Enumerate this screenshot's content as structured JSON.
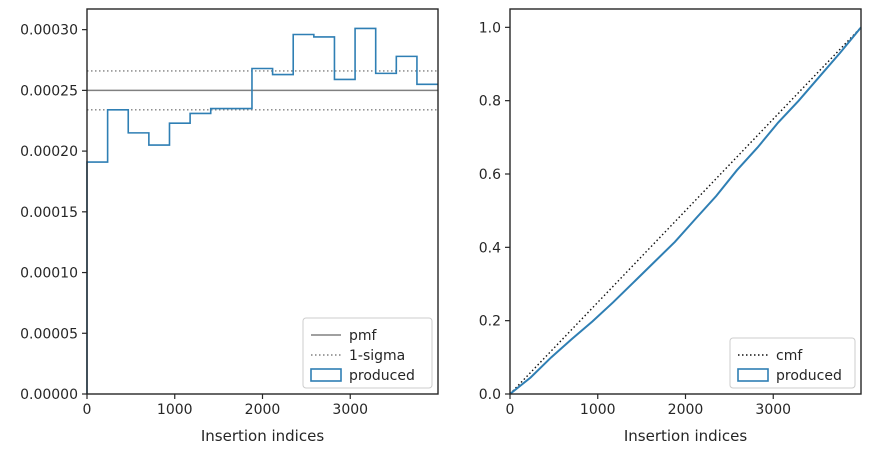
{
  "chart_data": [
    {
      "type": "line",
      "subtype": "step-histogram",
      "xlabel": "Insertion indices",
      "ylabel": "",
      "xlim": [
        0,
        4000
      ],
      "ylim": [
        0,
        0.000317
      ],
      "xticks": [
        0,
        1000,
        2000,
        3000
      ],
      "xtick_labels": [
        "0",
        "1000",
        "2000",
        "3000"
      ],
      "yticks": [
        0,
        5e-05,
        0.0001,
        0.00015,
        0.0002,
        0.00025,
        0.0003
      ],
      "ytick_labels": [
        "0.00000",
        "0.00005",
        "0.00010",
        "0.00015",
        "0.00020",
        "0.00025",
        "0.00030"
      ],
      "grid": false,
      "legend_position": "bottom-right",
      "legend": [
        "pmf",
        "1-sigma",
        "produced"
      ],
      "series": [
        {
          "name": "pmf",
          "style": "solid",
          "color": "#808080",
          "y": 0.00025
        },
        {
          "name": "1-sigma",
          "style": "dotted",
          "color": "#808080",
          "y": [
            0.000234,
            0.000266
          ]
        },
        {
          "name": "produced",
          "style": "step",
          "color": "#2f7fb4",
          "bin_edges": [
            0,
            235,
            470,
            705,
            940,
            1175,
            1410,
            1645,
            1880,
            2115,
            2350,
            2585,
            2820,
            3055,
            3290,
            3525,
            3760,
            4000
          ],
          "values": [
            0.000191,
            0.000234,
            0.000215,
            0.000205,
            0.000223,
            0.000231,
            0.000235,
            0.000235,
            0.000268,
            0.000263,
            0.000296,
            0.000294,
            0.000259,
            0.000301,
            0.000264,
            0.000278,
            0.000255
          ]
        }
      ]
    },
    {
      "type": "line",
      "xlabel": "Insertion indices",
      "ylabel": "",
      "xlim": [
        0,
        4000
      ],
      "ylim": [
        0,
        1.05
      ],
      "xticks": [
        0,
        1000,
        2000,
        3000
      ],
      "xtick_labels": [
        "0",
        "1000",
        "2000",
        "3000"
      ],
      "yticks": [
        0,
        0.2,
        0.4,
        0.6,
        0.8,
        1.0
      ],
      "ytick_labels": [
        "0.0",
        "0.2",
        "0.4",
        "0.6",
        "0.8",
        "1.0"
      ],
      "grid": false,
      "legend_position": "bottom-right",
      "legend": [
        "cmf",
        "produced"
      ],
      "series": [
        {
          "name": "cmf",
          "style": "dotted",
          "color": "#111111",
          "x": [
            0,
            4000
          ],
          "y": [
            0,
            1.0
          ]
        },
        {
          "name": "produced",
          "style": "solid",
          "color": "#2f7fb4",
          "x": [
            0,
            235,
            470,
            705,
            940,
            1175,
            1410,
            1645,
            1880,
            2115,
            2350,
            2585,
            2820,
            3055,
            3290,
            3525,
            3760,
            4000
          ],
          "y": [
            0,
            0.045,
            0.1,
            0.15,
            0.198,
            0.25,
            0.305,
            0.36,
            0.415,
            0.478,
            0.54,
            0.61,
            0.672,
            0.74,
            0.8,
            0.865,
            0.93,
            1.0
          ]
        }
      ]
    }
  ]
}
